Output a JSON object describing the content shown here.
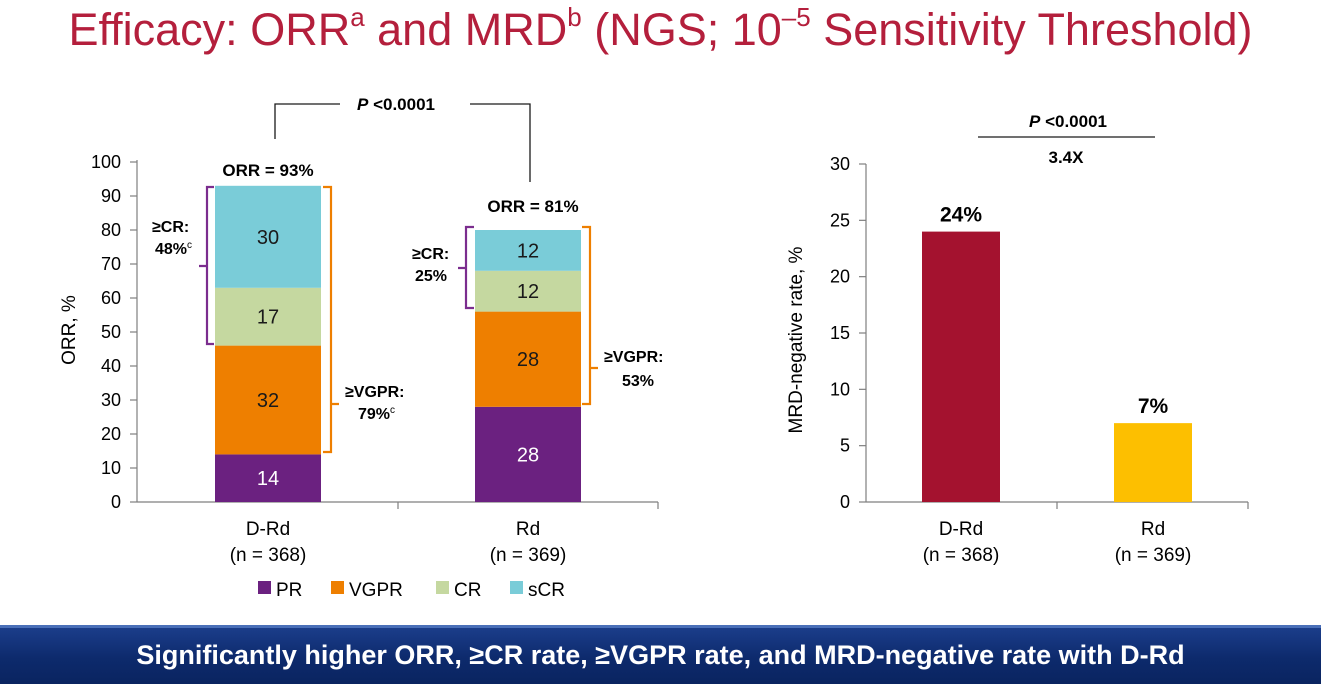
{
  "title": {
    "part1": "Efficacy: ORR",
    "sup_a": "a",
    "part2": " and MRD",
    "sup_b": "b",
    "part3": " (NGS; 10",
    "sup_exp": "–5",
    "part4": " Sensitivity Threshold)"
  },
  "chart_data": [
    {
      "type": "bar",
      "stacked": true,
      "ylabel": "ORR, %",
      "ylim": [
        0,
        100
      ],
      "yticks": [
        "0",
        "10",
        "20",
        "30",
        "40",
        "50",
        "60",
        "70",
        "80",
        "90",
        "100"
      ],
      "categories": [
        "D-Rd",
        "Rd"
      ],
      "category_n": [
        "(n = 368)",
        "(n = 369)"
      ],
      "series": [
        {
          "name": "PR",
          "color": "#6b2180",
          "values": [
            14,
            28
          ]
        },
        {
          "name": "VGPR",
          "color": "#ee7f00",
          "values": [
            32,
            28
          ]
        },
        {
          "name": "CR",
          "color": "#c5d8a0",
          "values": [
            17,
            12
          ]
        },
        {
          "name": "sCR",
          "color": "#7accd8",
          "values": [
            30,
            12
          ]
        }
      ],
      "segment_labels": [
        [
          "14",
          "32",
          "17",
          "30"
        ],
        [
          "28",
          "28",
          "12",
          "12"
        ]
      ],
      "orr_labels": [
        "ORR = 93%",
        "ORR = 81%"
      ],
      "pvalue": {
        "italic": "P",
        "rest": " <0.0001"
      },
      "annotations": {
        "cr_drd": {
          "label": "≥CR:",
          "value": "48%",
          "sup": "c"
        },
        "vgpr_drd": {
          "label": "≥VGPR:",
          "value": "79%",
          "sup": "c"
        },
        "cr_rd": {
          "label": "≥CR:",
          "value": "25%",
          "sup": ""
        },
        "vgpr_rd": {
          "label": "≥VGPR:",
          "value": "53%",
          "sup": ""
        }
      },
      "legend": [
        "PR",
        "VGPR",
        "CR",
        "sCR"
      ],
      "legend_position": "bottom",
      "grid": false
    },
    {
      "type": "bar",
      "ylabel": "MRD-negative  rate, %",
      "ylim": [
        0,
        30
      ],
      "yticks": [
        "0",
        "5",
        "10",
        "15",
        "20",
        "25",
        "30"
      ],
      "categories": [
        "D-Rd",
        "Rd"
      ],
      "category_n": [
        "(n = 368)",
        "(n = 369)"
      ],
      "values": [
        24,
        7
      ],
      "colors": [
        "#a4122f",
        "#fdbf00"
      ],
      "value_labels": [
        "24%",
        "7%"
      ],
      "pvalue": {
        "italic": "P",
        "rest": " <0.0001"
      },
      "ratio_label": "3.4X",
      "grid": false
    }
  ],
  "banner": "Significantly  higher ORR, ≥CR rate, ≥VGPR rate, and MRD-negative rate with D-Rd"
}
